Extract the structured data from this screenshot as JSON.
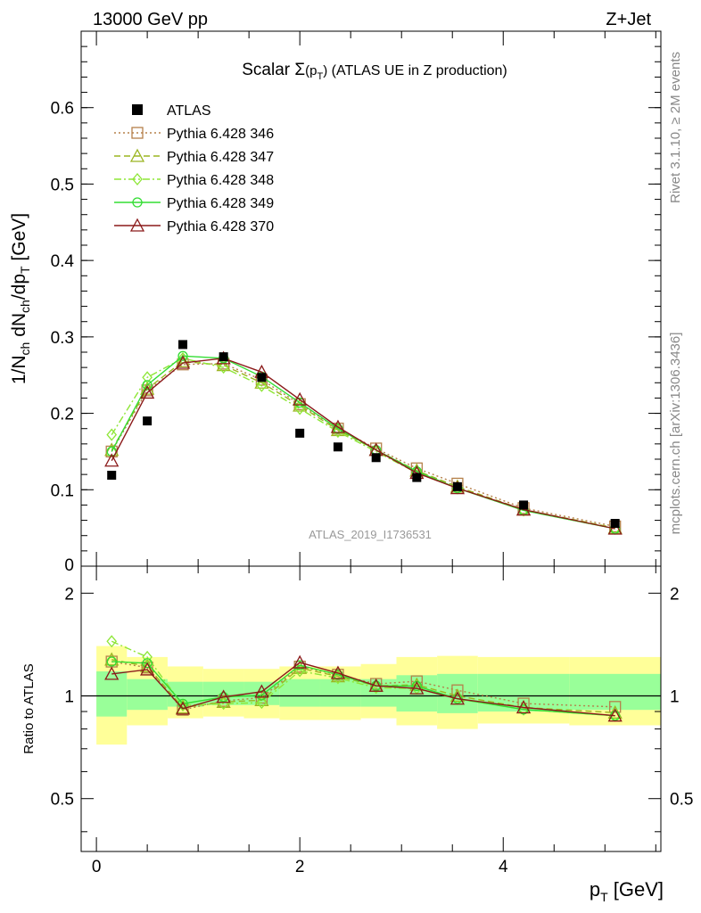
{
  "header": {
    "left": "13000 GeV pp",
    "right": "Z+Jet"
  },
  "title": {
    "prefix": "Scalar ",
    "sigma": "Σ",
    "arg": "(p",
    "arg_sub": "T",
    "arg_close": ")",
    "suffix": " (ATLAS UE in Z production)"
  },
  "side_text": {
    "rivet": "Rivet 3.1.10, ≥ 2M events",
    "mcplots": "mcplots.cern.ch [arXiv:1306.3436]"
  },
  "watermark": "ATLAS_2019_I1736531",
  "ylabel": {
    "part1": "1/N",
    "sub1": "ch",
    "part2": " dN",
    "sub2": "ch",
    "part3": "/dp",
    "sub3": "T",
    "part4": " [GeV]"
  },
  "ratio_ylabel": "Ratio to ATLAS",
  "xlabel": {
    "p": "p",
    "sub": "T",
    "unit": " [GeV]"
  },
  "colors": {
    "data": "#000000",
    "s346": "#b5804a",
    "s347": "#9bb520",
    "s348": "#8ee637",
    "s349": "#33dd33",
    "s370": "#8b1a1a",
    "band_outer": "#ffff99",
    "band_inner": "#99ff99"
  },
  "chart_data": {
    "type": "scatter",
    "x": [
      0.15,
      0.5,
      0.85,
      1.25,
      1.625,
      2.0,
      2.375,
      2.75,
      3.15,
      3.55,
      4.2,
      5.1
    ],
    "xlim": [
      -0.15,
      5.55
    ],
    "main": {
      "ylim": [
        0,
        0.7
      ],
      "yticks": [
        0.1,
        0.2,
        0.3,
        0.4,
        0.5,
        0.6
      ],
      "ytick_labels": [
        "0.1",
        "0.2",
        "0.3",
        "0.4",
        "0.5",
        "0.6"
      ],
      "zero_label": "0"
    },
    "ratio": {
      "ylim": [
        0.35,
        2.4
      ],
      "log": true,
      "yticks": [
        0.5,
        1,
        2
      ],
      "ytick_labels": [
        "0.5",
        "1",
        "2"
      ]
    },
    "xticks": [
      0,
      2,
      4
    ],
    "xtick_labels": [
      "0",
      "2",
      "4"
    ],
    "data": {
      "name": "ATLAS",
      "values": [
        0.119,
        0.19,
        0.29,
        0.274,
        0.247,
        0.174,
        0.156,
        0.142,
        0.116,
        0.104,
        0.08,
        0.056
      ]
    },
    "bands": {
      "edges": [
        0,
        0.3,
        0.7,
        1.05,
        1.45,
        1.8,
        2.2,
        2.6,
        2.95,
        3.35,
        3.75,
        4.65,
        5.55
      ],
      "outer_lo": [
        0.72,
        0.82,
        0.86,
        0.87,
        0.86,
        0.85,
        0.85,
        0.86,
        0.82,
        0.8,
        0.83,
        0.82
      ],
      "outer_hi": [
        1.4,
        1.3,
        1.22,
        1.2,
        1.2,
        1.22,
        1.22,
        1.24,
        1.3,
        1.31,
        1.3,
        1.3
      ],
      "inner_lo": [
        0.87,
        0.91,
        0.93,
        0.94,
        0.94,
        0.93,
        0.93,
        0.93,
        0.9,
        0.89,
        0.9,
        0.91
      ],
      "inner_hi": [
        1.18,
        1.12,
        1.1,
        1.1,
        1.1,
        1.12,
        1.12,
        1.12,
        1.15,
        1.16,
        1.16,
        1.16
      ]
    },
    "series": [
      {
        "name": "Pythia 6.428 346",
        "color_key": "s346",
        "marker": "square",
        "dash": "2,3",
        "values": [
          0.15,
          0.23,
          0.264,
          0.265,
          0.244,
          0.212,
          0.18,
          0.154,
          0.128,
          0.108,
          0.076,
          0.052
        ]
      },
      {
        "name": "Pythia 6.428 347",
        "color_key": "s347",
        "marker": "triangle",
        "dash": "7,4",
        "values": [
          0.152,
          0.232,
          0.268,
          0.263,
          0.24,
          0.21,
          0.178,
          0.152,
          0.125,
          0.104,
          0.074,
          0.05
        ]
      },
      {
        "name": "Pythia 6.428 348",
        "color_key": "s348",
        "marker": "diamond",
        "dash": "8,3,2,3",
        "values": [
          0.172,
          0.247,
          0.272,
          0.26,
          0.236,
          0.206,
          0.176,
          0.15,
          0.122,
          0.102,
          0.073,
          0.049
        ]
      },
      {
        "name": "Pythia 6.428 349",
        "color_key": "s349",
        "marker": "circle",
        "dash": "",
        "values": [
          0.15,
          0.237,
          0.275,
          0.272,
          0.248,
          0.214,
          0.18,
          0.152,
          0.124,
          0.102,
          0.073,
          0.049
        ]
      },
      {
        "name": "Pythia 6.428 370",
        "color_key": "s370",
        "marker": "triangle",
        "dash": "",
        "values": [
          0.138,
          0.227,
          0.266,
          0.272,
          0.254,
          0.218,
          0.182,
          0.152,
          0.122,
          0.102,
          0.074,
          0.049
        ]
      }
    ]
  }
}
